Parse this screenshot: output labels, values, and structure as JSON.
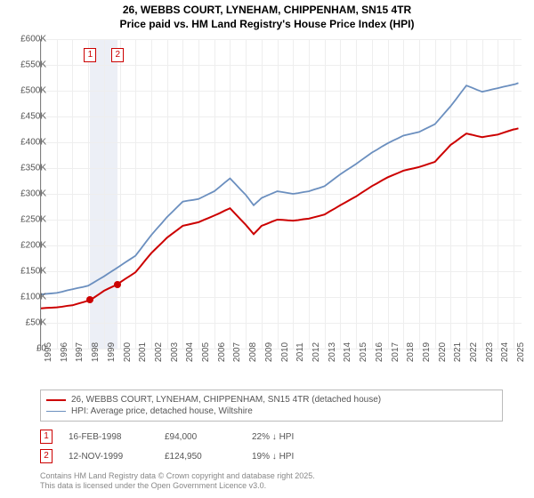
{
  "title_line1": "26, WEBBS COURT, LYNEHAM, CHIPPENHAM, SN15 4TR",
  "title_line2": "Price paid vs. HM Land Registry's House Price Index (HPI)",
  "chart": {
    "type": "line",
    "background_color": "#ffffff",
    "grid_color": "#eeeeee",
    "axis_color": "#808080",
    "ymin": 0,
    "ymax": 600000,
    "ytick_step": 50000,
    "yticks": [
      "£0",
      "£50K",
      "£100K",
      "£150K",
      "£200K",
      "£250K",
      "£300K",
      "£350K",
      "£400K",
      "£450K",
      "£500K",
      "£550K",
      "£600K"
    ],
    "xmin": 1995,
    "xmax": 2025.5,
    "xticks": [
      1995,
      1996,
      1997,
      1998,
      1999,
      2000,
      2001,
      2002,
      2003,
      2004,
      2005,
      2006,
      2007,
      2008,
      2009,
      2010,
      2011,
      2012,
      2013,
      2014,
      2015,
      2016,
      2017,
      2018,
      2019,
      2020,
      2021,
      2022,
      2023,
      2024,
      2025
    ],
    "series": [
      {
        "name": "property",
        "color": "#cc0000",
        "stroke_width": 2,
        "label": "26, WEBBS COURT, LYNEHAM, CHIPPENHAM, SN15 4TR (detached house)",
        "data": [
          [
            1995,
            78000
          ],
          [
            1996,
            80000
          ],
          [
            1997,
            84000
          ],
          [
            1998.13,
            94000
          ],
          [
            1999,
            112000
          ],
          [
            1999.87,
            124950
          ],
          [
            2000,
            128000
          ],
          [
            2001,
            148000
          ],
          [
            2002,
            185000
          ],
          [
            2003,
            215000
          ],
          [
            2004,
            238000
          ],
          [
            2005,
            245000
          ],
          [
            2006,
            258000
          ],
          [
            2007,
            272000
          ],
          [
            2008,
            240000
          ],
          [
            2008.5,
            222000
          ],
          [
            2009,
            238000
          ],
          [
            2010,
            250000
          ],
          [
            2011,
            248000
          ],
          [
            2012,
            252000
          ],
          [
            2013,
            260000
          ],
          [
            2014,
            278000
          ],
          [
            2015,
            295000
          ],
          [
            2016,
            315000
          ],
          [
            2017,
            332000
          ],
          [
            2018,
            345000
          ],
          [
            2019,
            352000
          ],
          [
            2020,
            362000
          ],
          [
            2021,
            395000
          ],
          [
            2022,
            417000
          ],
          [
            2023,
            410000
          ],
          [
            2024,
            415000
          ],
          [
            2025,
            425000
          ],
          [
            2025.3,
            427000
          ]
        ]
      },
      {
        "name": "hpi",
        "color": "#6b8fbf",
        "stroke_width": 1.8,
        "label": "HPI: Average price, detached house, Wiltshire",
        "data": [
          [
            1995,
            105000
          ],
          [
            1996,
            108000
          ],
          [
            1997,
            115000
          ],
          [
            1998,
            122000
          ],
          [
            1999,
            140000
          ],
          [
            2000,
            160000
          ],
          [
            2001,
            180000
          ],
          [
            2002,
            220000
          ],
          [
            2003,
            255000
          ],
          [
            2004,
            285000
          ],
          [
            2005,
            290000
          ],
          [
            2006,
            305000
          ],
          [
            2007,
            330000
          ],
          [
            2008,
            298000
          ],
          [
            2008.5,
            278000
          ],
          [
            2009,
            292000
          ],
          [
            2010,
            305000
          ],
          [
            2011,
            300000
          ],
          [
            2012,
            305000
          ],
          [
            2013,
            315000
          ],
          [
            2014,
            338000
          ],
          [
            2015,
            358000
          ],
          [
            2016,
            380000
          ],
          [
            2017,
            398000
          ],
          [
            2018,
            413000
          ],
          [
            2019,
            420000
          ],
          [
            2020,
            435000
          ],
          [
            2021,
            470000
          ],
          [
            2022,
            510000
          ],
          [
            2023,
            498000
          ],
          [
            2024,
            505000
          ],
          [
            2025,
            512000
          ],
          [
            2025.3,
            515000
          ]
        ]
      }
    ],
    "sale_band_color": "rgba(200,210,230,0.35)",
    "sale_points": [
      {
        "id": "1",
        "year": 1998.13,
        "price": 94000
      },
      {
        "id": "2",
        "year": 1999.87,
        "price": 124950
      }
    ]
  },
  "legend": {
    "border_color": "#bbbbbb",
    "fontsize": 10
  },
  "sales": [
    {
      "id": "1",
      "date": "16-FEB-1998",
      "price": "£94,000",
      "diff": "22% ↓ HPI"
    },
    {
      "id": "2",
      "date": "12-NOV-1999",
      "price": "£124,950",
      "diff": "19% ↓ HPI"
    }
  ],
  "copyright_line1": "Contains HM Land Registry data © Crown copyright and database right 2025.",
  "copyright_line2": "This data is licensed under the Open Government Licence v3.0."
}
